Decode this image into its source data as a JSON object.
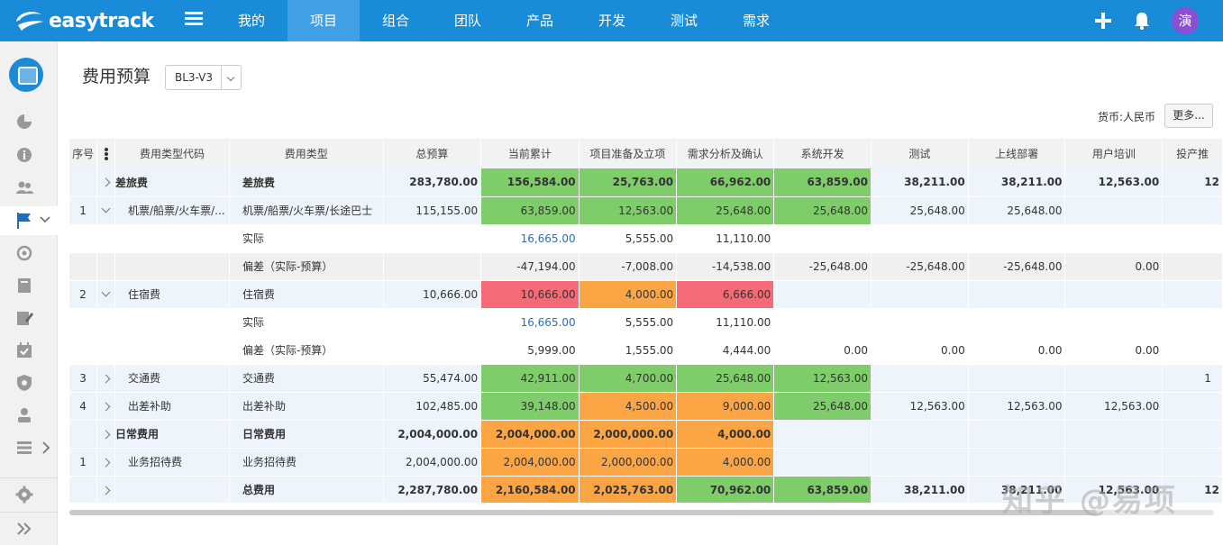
{
  "app": {
    "name": "easytrack"
  },
  "nav": {
    "items": [
      {
        "label": "我的"
      },
      {
        "label": "项目",
        "active": true
      },
      {
        "label": "组合"
      },
      {
        "label": "团队"
      },
      {
        "label": "产品"
      },
      {
        "label": "开发"
      },
      {
        "label": "测试"
      },
      {
        "label": "需求"
      }
    ],
    "avatar": "演"
  },
  "page": {
    "title": "费用预算",
    "version": "BL3-V3",
    "currency": "货币:人民币",
    "more_label": "更多..."
  },
  "table": {
    "headers": [
      "序号",
      "费用类型代码",
      "费用类型",
      "总预算",
      "当前累计",
      "项目准备及立项",
      "需求分析及确认",
      "系统开发",
      "测试",
      "上线部署",
      "用户培训",
      "投产推"
    ],
    "rows": [
      {
        "style": "light",
        "sum": true,
        "seq": "",
        "toggle": "right",
        "code": "差旅费",
        "type": "差旅费",
        "cells": [
          [
            "283,780.00",
            ""
          ],
          [
            "156,584.00",
            "g"
          ],
          [
            "25,763.00",
            "g"
          ],
          [
            "66,962.00",
            "g"
          ],
          [
            "63,859.00",
            "g"
          ],
          [
            "38,211.00",
            ""
          ],
          [
            "38,211.00",
            ""
          ],
          [
            "12,563.00",
            ""
          ],
          [
            "12",
            ""
          ]
        ]
      },
      {
        "style": "light",
        "seq": "1",
        "toggle": "down",
        "code": "机票/船票/火车票/...",
        "type": "机票/船票/火车票/长途巴士",
        "cells": [
          [
            "115,155.00",
            ""
          ],
          [
            "63,859.00",
            "g"
          ],
          [
            "12,563.00",
            "g"
          ],
          [
            "25,648.00",
            "g"
          ],
          [
            "25,648.00",
            "g"
          ],
          [
            "25,648.00",
            ""
          ],
          [
            "25,648.00",
            ""
          ],
          [
            "",
            ""
          ],
          [
            "",
            ""
          ]
        ]
      },
      {
        "style": "white",
        "seq": "",
        "toggle": "",
        "code": "",
        "type": "实际",
        "cells": [
          [
            "",
            ""
          ],
          [
            "16,665.00",
            "link"
          ],
          [
            "5,555.00",
            ""
          ],
          [
            "11,110.00",
            ""
          ],
          [
            "",
            ""
          ],
          [
            "",
            ""
          ],
          [
            "",
            ""
          ],
          [
            "",
            ""
          ],
          [
            "",
            ""
          ]
        ]
      },
      {
        "style": "grey",
        "seq": "",
        "toggle": "",
        "code": "",
        "type": "偏差（实际-预算）",
        "cells": [
          [
            "",
            ""
          ],
          [
            "-47,194.00",
            ""
          ],
          [
            "-7,008.00",
            ""
          ],
          [
            "-14,538.00",
            ""
          ],
          [
            "-25,648.00",
            ""
          ],
          [
            "-25,648.00",
            ""
          ],
          [
            "-25,648.00",
            ""
          ],
          [
            "0.00",
            ""
          ],
          [
            "",
            ""
          ]
        ]
      },
      {
        "style": "light",
        "seq": "2",
        "toggle": "down",
        "code": "住宿费",
        "type": "住宿费",
        "cells": [
          [
            "10,666.00",
            ""
          ],
          [
            "10,666.00",
            "r"
          ],
          [
            "4,000.00",
            "o"
          ],
          [
            "6,666.00",
            "r"
          ],
          [
            "",
            ""
          ],
          [
            "",
            ""
          ],
          [
            "",
            ""
          ],
          [
            "",
            ""
          ],
          [
            "",
            ""
          ]
        ]
      },
      {
        "style": "white",
        "seq": "",
        "toggle": "",
        "code": "",
        "type": "实际",
        "cells": [
          [
            "",
            ""
          ],
          [
            "16,665.00",
            "link"
          ],
          [
            "5,555.00",
            ""
          ],
          [
            "11,110.00",
            ""
          ],
          [
            "",
            ""
          ],
          [
            "",
            ""
          ],
          [
            "",
            ""
          ],
          [
            "",
            ""
          ],
          [
            "",
            ""
          ]
        ]
      },
      {
        "style": "white",
        "seq": "",
        "toggle": "",
        "code": "",
        "type": "偏差（实际-预算）",
        "cells": [
          [
            "",
            ""
          ],
          [
            "5,999.00",
            ""
          ],
          [
            "1,555.00",
            ""
          ],
          [
            "4,444.00",
            ""
          ],
          [
            "0.00",
            ""
          ],
          [
            "0.00",
            ""
          ],
          [
            "0.00",
            ""
          ],
          [
            "0.00",
            ""
          ],
          [
            "",
            ""
          ]
        ]
      },
      {
        "style": "light",
        "seq": "3",
        "toggle": "right",
        "code": "交通费",
        "type": "交通费",
        "cells": [
          [
            "55,474.00",
            ""
          ],
          [
            "42,911.00",
            "g"
          ],
          [
            "4,700.00",
            "g"
          ],
          [
            "25,648.00",
            "g"
          ],
          [
            "12,563.00",
            "g"
          ],
          [
            "",
            ""
          ],
          [
            "",
            ""
          ],
          [
            "",
            ""
          ],
          [
            "1",
            ""
          ]
        ]
      },
      {
        "style": "light",
        "seq": "4",
        "toggle": "right",
        "code": "出差补助",
        "type": "出差补助",
        "cells": [
          [
            "102,485.00",
            ""
          ],
          [
            "39,148.00",
            "g"
          ],
          [
            "4,500.00",
            "o"
          ],
          [
            "9,000.00",
            "o"
          ],
          [
            "25,648.00",
            "g"
          ],
          [
            "12,563.00",
            ""
          ],
          [
            "12,563.00",
            ""
          ],
          [
            "12,563.00",
            ""
          ],
          [
            "",
            ""
          ]
        ]
      },
      {
        "style": "light",
        "sum": true,
        "seq": "",
        "toggle": "right",
        "code": "日常费用",
        "type": "日常费用",
        "cells": [
          [
            "2,004,000.00",
            ""
          ],
          [
            "2,004,000.00",
            "o"
          ],
          [
            "2,000,000.00",
            "o"
          ],
          [
            "4,000.00",
            "o"
          ],
          [
            "",
            ""
          ],
          [
            "",
            ""
          ],
          [
            "",
            ""
          ],
          [
            "",
            ""
          ],
          [
            "",
            ""
          ]
        ]
      },
      {
        "style": "light",
        "seq": "1",
        "toggle": "right",
        "code": "业务招待费",
        "type": "业务招待费",
        "cells": [
          [
            "2,004,000.00",
            ""
          ],
          [
            "2,004,000.00",
            "o"
          ],
          [
            "2,000,000.00",
            "o"
          ],
          [
            "4,000.00",
            "o"
          ],
          [
            "",
            ""
          ],
          [
            "",
            ""
          ],
          [
            "",
            ""
          ],
          [
            "",
            ""
          ],
          [
            "",
            ""
          ]
        ]
      },
      {
        "style": "light",
        "sum": true,
        "seq": "",
        "toggle": "right",
        "code": "",
        "type": "总费用",
        "cells": [
          [
            "2,287,780.00",
            ""
          ],
          [
            "2,160,584.00",
            "o"
          ],
          [
            "2,025,763.00",
            "o"
          ],
          [
            "70,962.00",
            "g"
          ],
          [
            "63,859.00",
            "g"
          ],
          [
            "38,211.00",
            ""
          ],
          [
            "38,211.00",
            ""
          ],
          [
            "12,563.00",
            ""
          ],
          [
            "12",
            ""
          ]
        ]
      }
    ]
  },
  "watermark": "知乎 @易项"
}
